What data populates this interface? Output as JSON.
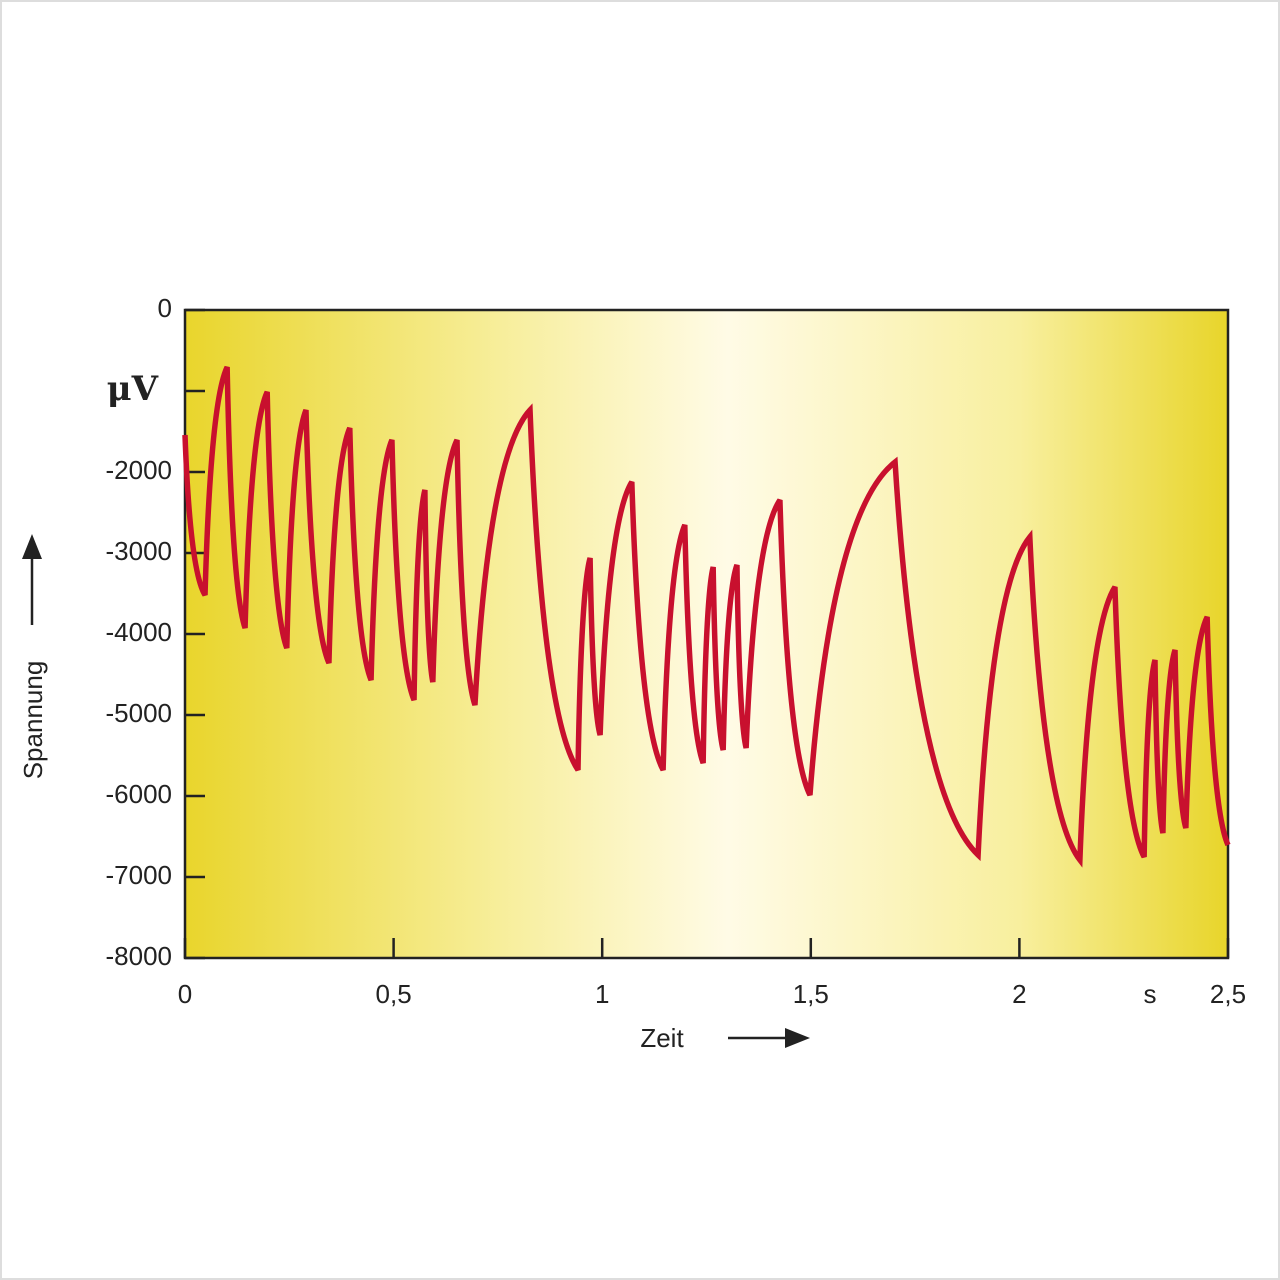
{
  "chart_data": {
    "type": "line",
    "x_label": "Zeit",
    "y_label": "Spannung",
    "x_unit": "s",
    "xlim": [
      0,
      2.5
    ],
    "xticks": [
      0,
      {
        "value": 0.5,
        "label": "0,5"
      },
      1,
      {
        "value": 1.5,
        "label": "1,5"
      },
      2,
      {
        "value": 2.5,
        "label": "2,5"
      }
    ],
    "ylim": [
      -8000,
      0
    ],
    "yticks": [
      0,
      {
        "value": -1000,
        "label": "μV"
      },
      -2000,
      -3000,
      -4000,
      -5000,
      -6000,
      -7000,
      -8000
    ],
    "series": [
      {
        "color": "#c8102e",
        "x": [
          0,
          0.048,
          0.101,
          0.144,
          0.197,
          0.244,
          0.29,
          0.345,
          0.395,
          0.446,
          0.496,
          0.549,
          0.575,
          0.594,
          0.652,
          0.695,
          0.827,
          0.942,
          0.971,
          0.995,
          1.071,
          1.146,
          1.198,
          1.242,
          1.266,
          1.29,
          1.323,
          1.345,
          1.426,
          1.498,
          1.702,
          1.901,
          2.025,
          2.145,
          2.229,
          2.299,
          2.325,
          2.344,
          2.373,
          2.399,
          2.45,
          2.5
        ],
        "values": [
          -1543,
          -3519,
          -704,
          -3926,
          -1012,
          -4173,
          -1235,
          -4358,
          -1457,
          -4568,
          -1605,
          -4815,
          -2222,
          -4593,
          -1605,
          -4877,
          -1235,
          -5679,
          -3062,
          -5247,
          -2123,
          -5679,
          -2654,
          -5593,
          -3173,
          -5432,
          -3148,
          -5407,
          -2346,
          -5988,
          -1877,
          -6728,
          -2802,
          -6790,
          -3420,
          -6753,
          -4321,
          -6457,
          -4198,
          -6395,
          -3790,
          -6605
        ]
      }
    ]
  }
}
